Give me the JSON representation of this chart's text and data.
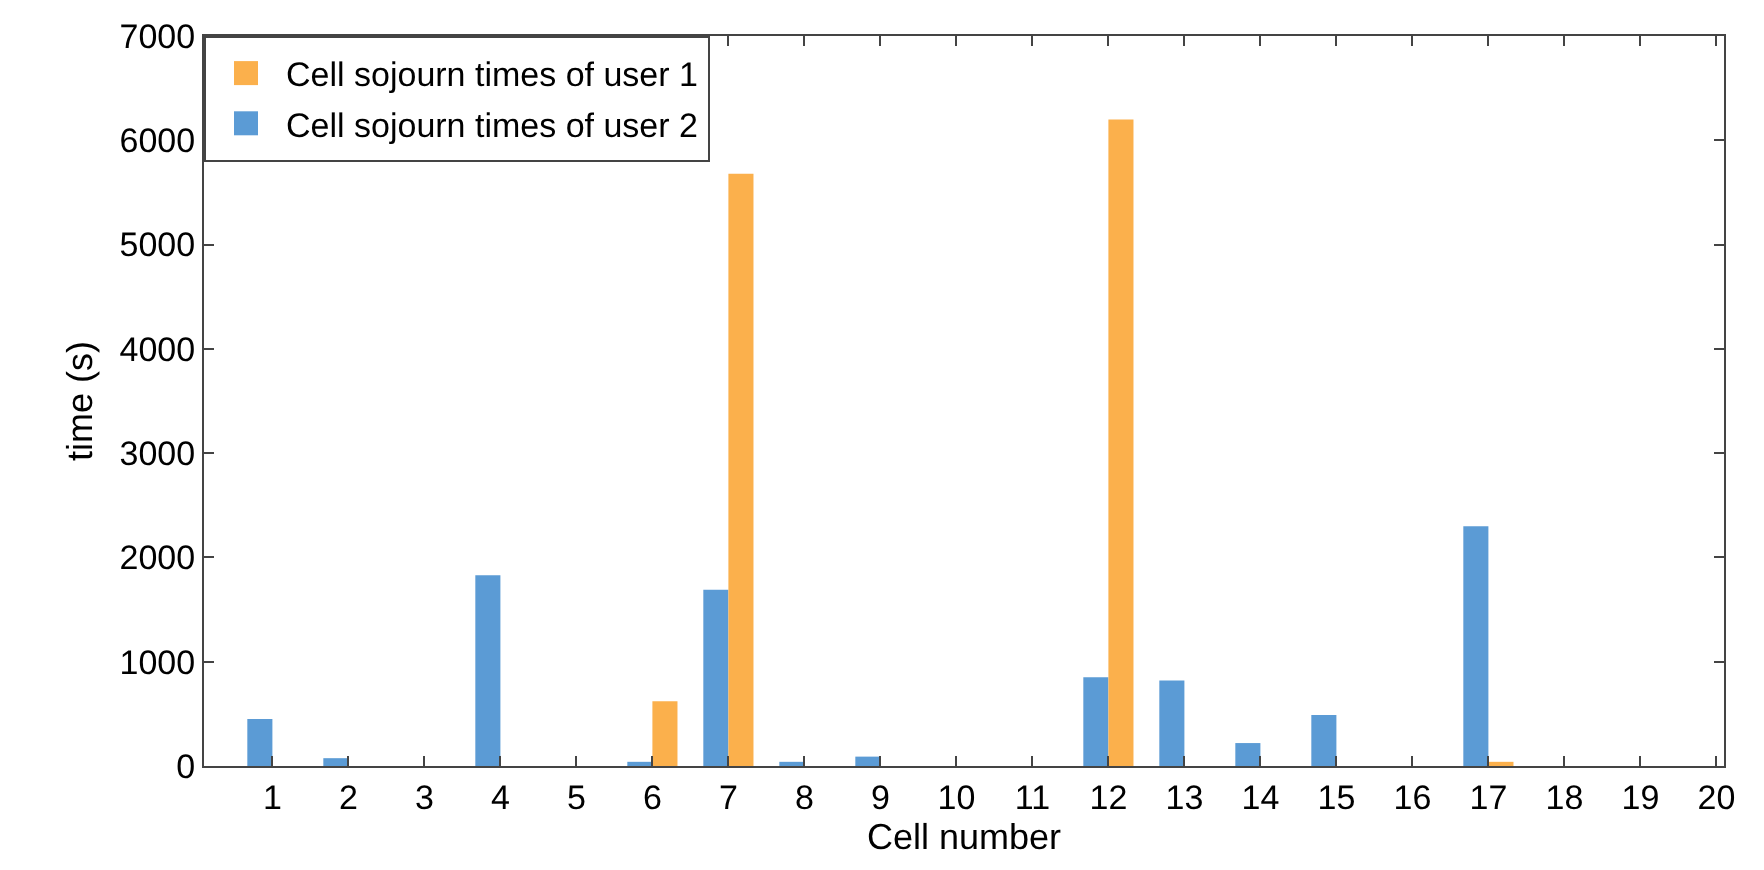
{
  "chart_data": {
    "type": "bar",
    "xlabel": "Cell number",
    "ylabel": "time (s)",
    "x": [
      1,
      2,
      3,
      4,
      5,
      6,
      7,
      8,
      9,
      10,
      11,
      12,
      13,
      14,
      15,
      16,
      17,
      18,
      19,
      20
    ],
    "series": [
      {
        "name": "Cell sojourn times of user 1",
        "color": "#fbb04c",
        "values": [
          0,
          0,
          0,
          0,
          0,
          620,
          5680,
          0,
          0,
          0,
          0,
          6200,
          0,
          0,
          0,
          0,
          40,
          0,
          0,
          0
        ]
      },
      {
        "name": "Cell sojourn times of user 2",
        "color": "#5b9bd5",
        "values": [
          450,
          75,
          0,
          1830,
          0,
          40,
          1690,
          40,
          90,
          0,
          0,
          850,
          820,
          220,
          490,
          0,
          2300,
          0,
          0,
          0
        ]
      }
    ],
    "xlim": [
      0.1,
      20.1
    ],
    "xticks": [
      1,
      2,
      3,
      4,
      5,
      6,
      7,
      8,
      9,
      10,
      11,
      12,
      13,
      14,
      15,
      16,
      17,
      18,
      19,
      20
    ],
    "ylim": [
      0,
      7000
    ],
    "yticks": [
      0,
      1000,
      2000,
      3000,
      4000,
      5000,
      6000,
      7000
    ],
    "grid": false,
    "legend": "top left"
  }
}
